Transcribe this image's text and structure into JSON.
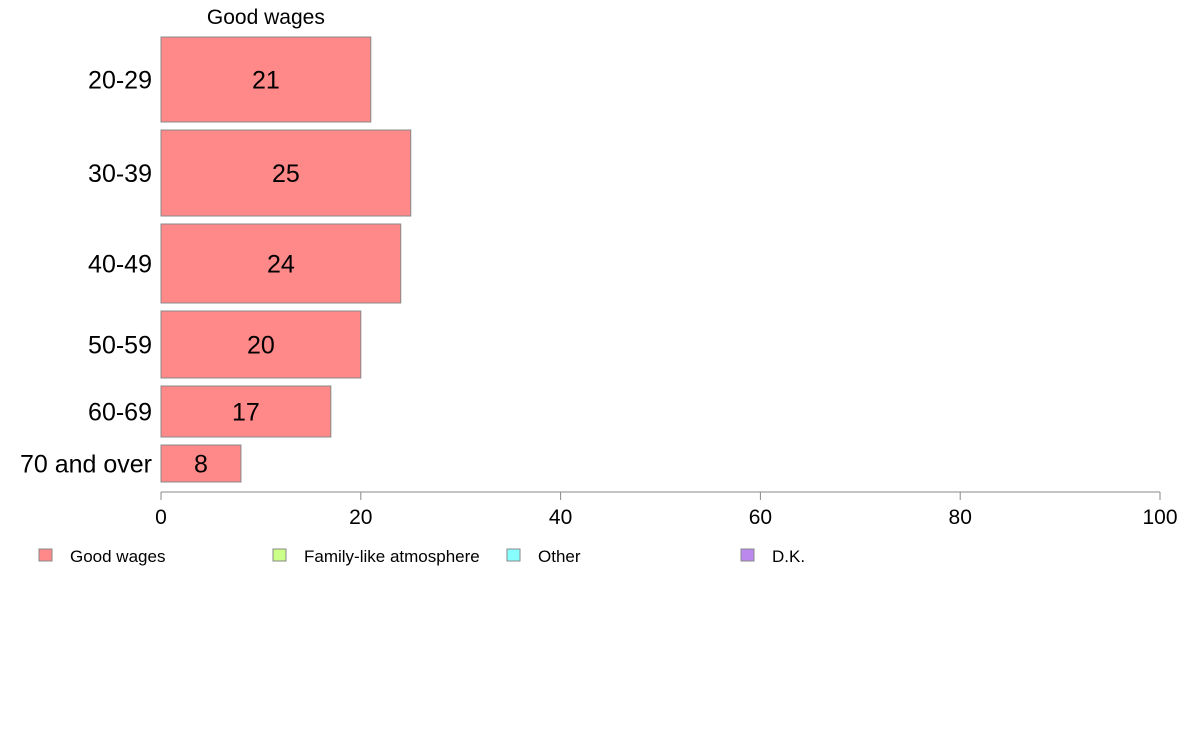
{
  "chart_data": {
    "type": "bar",
    "orientation": "horizontal",
    "stacked": true,
    "title": "",
    "segment_titles": [
      "Good wages"
    ],
    "categories": [
      "20-29",
      "30-39",
      "40-49",
      "50-59",
      "60-69",
      "70 and over"
    ],
    "series": [
      {
        "name": "Good wages",
        "values": [
          21,
          25,
          24,
          20,
          17,
          8
        ],
        "color": "#ff8888"
      }
    ],
    "data_labels": [
      "21",
      "25",
      "24",
      "20",
      "17",
      "8"
    ],
    "xlim": [
      0,
      100
    ],
    "xticks": [
      0,
      20,
      40,
      60,
      80,
      100
    ],
    "xlabel": "",
    "ylabel": "",
    "grid": false,
    "legend_position": "bottom",
    "legend": [
      {
        "name": "Good wages",
        "color": "#ff8888"
      },
      {
        "name": "Family-like atmosphere",
        "color": "#ccff88"
      },
      {
        "name": "Other",
        "color": "#88ffff"
      },
      {
        "name": "D.K.",
        "color": "#bb88ee"
      }
    ]
  }
}
